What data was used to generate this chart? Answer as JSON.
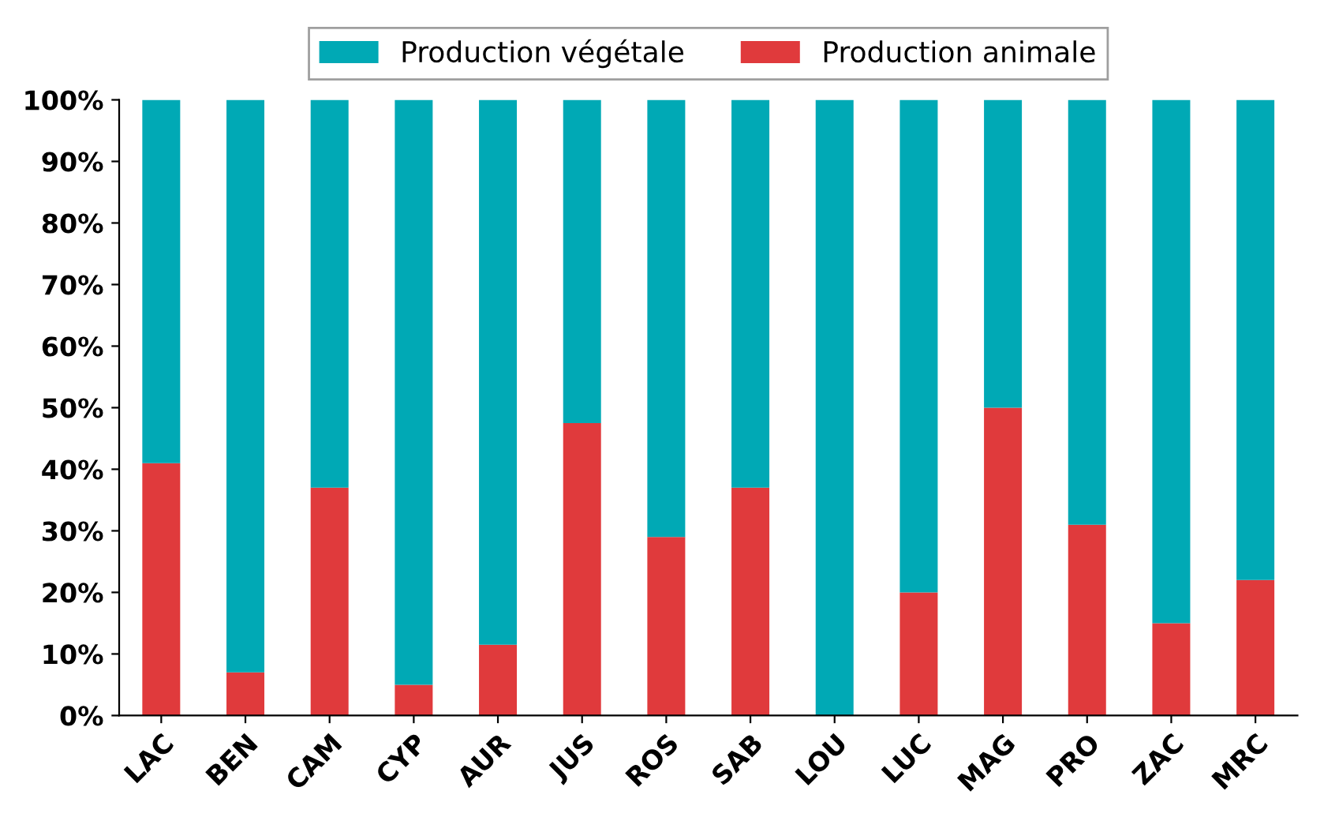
{
  "chart_data": {
    "type": "bar",
    "stacked": true,
    "categories": [
      "LAC",
      "BEN",
      "CAM",
      "CYP",
      "AUR",
      "JUS",
      "ROS",
      "SAB",
      "LOU",
      "LUC",
      "MAG",
      "PRO",
      "ZAC",
      "MRC"
    ],
    "series": [
      {
        "name": "Production animale",
        "color": "#e03a3c",
        "values": [
          41,
          7,
          37,
          5,
          11.5,
          47.5,
          29,
          37,
          0,
          20,
          50,
          31,
          15,
          22
        ]
      },
      {
        "name": "Production végétale",
        "color": "#00a9b5",
        "values": [
          59,
          93,
          63,
          95,
          88.5,
          52.5,
          71,
          63,
          100,
          80,
          50,
          69,
          85,
          78
        ]
      }
    ],
    "ylim": [
      0,
      100
    ],
    "yticks": [
      {
        "value": 0,
        "label": "0%"
      },
      {
        "value": 10,
        "label": "10%"
      },
      {
        "value": 20,
        "label": "20%"
      },
      {
        "value": 30,
        "label": "30%"
      },
      {
        "value": 40,
        "label": "40%"
      },
      {
        "value": 50,
        "label": "50%"
      },
      {
        "value": 60,
        "label": "60%"
      },
      {
        "value": 70,
        "label": "70%"
      },
      {
        "value": 80,
        "label": "80%"
      },
      {
        "value": 90,
        "label": "90%"
      },
      {
        "value": 100,
        "label": "100%"
      }
    ],
    "grid": false,
    "legend": "top"
  }
}
